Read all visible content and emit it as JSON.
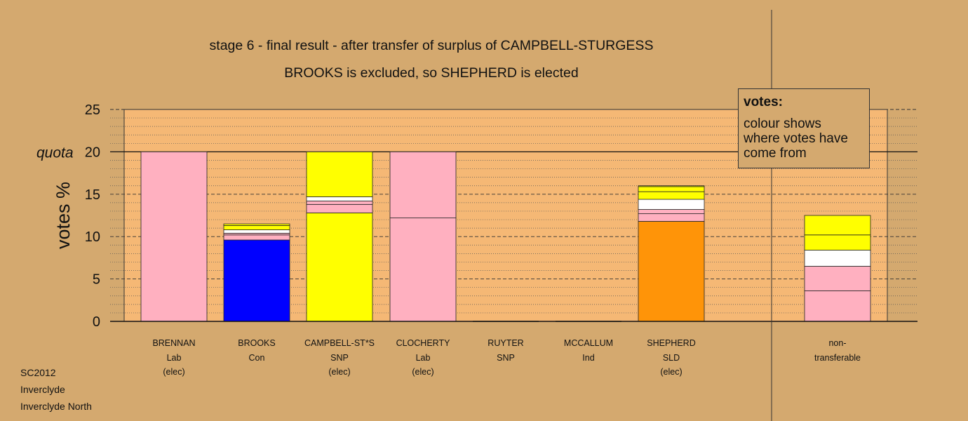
{
  "title": "stage 6 - final result - after transfer of surplus of CAMPBELL-STURGESS",
  "subtitle": "BROOKS is excluded, so SHEPHERD is elected",
  "legend": {
    "title": "votes:",
    "text": "colour shows where votes have come from"
  },
  "footer": [
    "SC2012",
    "Inverclyde",
    "Inverclyde North"
  ],
  "colors": {
    "background": "#d4a96f",
    "plot": "#f5b875",
    "Lab": "#ffb0c0",
    "Con": "#0000ff",
    "SNP": "#ffff00",
    "SLD": "#ff9408",
    "white": "#ffffff"
  },
  "chart_data": {
    "type": "bar",
    "stacked": true,
    "ylabel": "votes %",
    "ylim": [
      0,
      25
    ],
    "yticks": [
      0,
      5,
      10,
      15,
      20,
      25
    ],
    "quota": {
      "label": "quota",
      "value": 20
    },
    "grid": true,
    "candidates": [
      {
        "name": "BRENNAN",
        "party": "Lab",
        "status": "(elec)",
        "segments": [
          {
            "color": "#ffb0c0",
            "value": 20.0
          }
        ]
      },
      {
        "name": "BROOKS",
        "party": "Con",
        "status": "",
        "segments": [
          {
            "color": "#0000ff",
            "value": 9.6
          },
          {
            "color": "#ffb0c0",
            "value": 0.6
          },
          {
            "color": "#ffb0c0",
            "value": 0.2
          },
          {
            "color": "#ffffff",
            "value": 0.4
          },
          {
            "color": "#ffff00",
            "value": 0.5
          },
          {
            "color": "#ffff00",
            "value": 0.2
          }
        ]
      },
      {
        "name": "CAMPBELL-ST*S",
        "party": "SNP",
        "status": "(elec)",
        "segments": [
          {
            "color": "#ffff00",
            "value": 12.8
          },
          {
            "color": "#ffb0c0",
            "value": 1.0
          },
          {
            "color": "#ffb0c0",
            "value": 0.4
          },
          {
            "color": "#ffffff",
            "value": 0.5
          },
          {
            "color": "#ffff00",
            "value": 5.3
          }
        ]
      },
      {
        "name": "CLOCHERTY",
        "party": "Lab",
        "status": "(elec)",
        "segments": [
          {
            "color": "#ffb0c0",
            "value": 12.2
          },
          {
            "color": "#ffb0c0",
            "value": 7.8
          }
        ]
      },
      {
        "name": "RUYTER",
        "party": "SNP",
        "status": "",
        "segments": []
      },
      {
        "name": "MCCALLUM",
        "party": "Ind",
        "status": "",
        "segments": []
      },
      {
        "name": "SHEPHERD",
        "party": "SLD",
        "status": "(elec)",
        "segments": [
          {
            "color": "#ff9408",
            "value": 11.8
          },
          {
            "color": "#ffb0c0",
            "value": 0.9
          },
          {
            "color": "#ffb0c0",
            "value": 0.5
          },
          {
            "color": "#ffffff",
            "value": 1.2
          },
          {
            "color": "#ffff00",
            "value": 0.9
          },
          {
            "color": "#ffff00",
            "value": 0.6
          },
          {
            "color": "#ffff00",
            "value": 0.1
          }
        ]
      }
    ],
    "non_transferable": {
      "label": [
        "non-",
        "transferable"
      ],
      "segments": [
        {
          "color": "#ffb0c0",
          "value": 3.6
        },
        {
          "color": "#ffb0c0",
          "value": 2.9
        },
        {
          "color": "#ffffff",
          "value": 1.9
        },
        {
          "color": "#ffff00",
          "value": 1.8
        },
        {
          "color": "#ffff00",
          "value": 2.3
        }
      ]
    }
  }
}
